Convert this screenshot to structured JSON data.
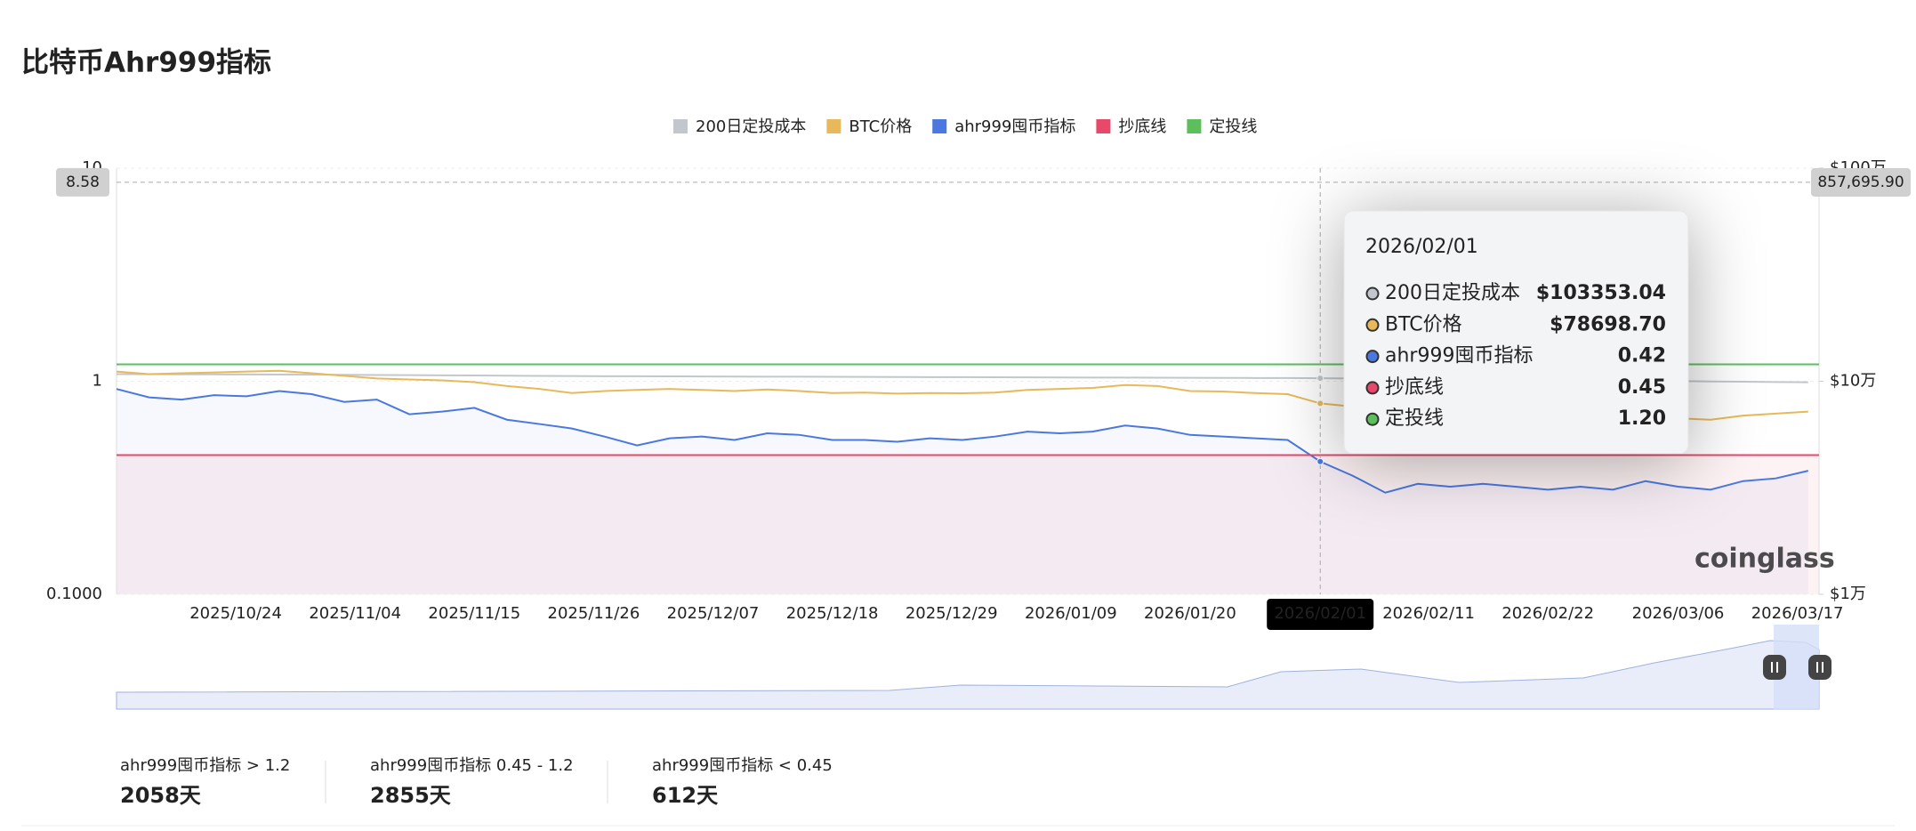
{
  "chart_data": {
    "type": "line",
    "title": "比特币Ahr999指标",
    "log_scale": true,
    "watermark": "coinglass",
    "x": [
      "2025/10/13",
      "2025/10/16",
      "2025/10/19",
      "2025/10/22",
      "2025/10/25",
      "2025/10/28",
      "2025/10/31",
      "2025/11/03",
      "2025/11/06",
      "2025/11/09",
      "2025/11/12",
      "2025/11/15",
      "2025/11/18",
      "2025/11/21",
      "2025/11/24",
      "2025/11/27",
      "2025/11/30",
      "2025/12/03",
      "2025/12/06",
      "2025/12/09",
      "2025/12/12",
      "2025/12/15",
      "2025/12/18",
      "2025/12/21",
      "2025/12/24",
      "2025/12/27",
      "2025/12/30",
      "2026/01/02",
      "2026/01/05",
      "2026/01/08",
      "2026/01/11",
      "2026/01/14",
      "2026/01/17",
      "2026/01/20",
      "2026/01/23",
      "2026/01/26",
      "2026/01/29",
      "2026/02/01",
      "2026/02/04",
      "2026/02/07",
      "2026/02/10",
      "2026/02/13",
      "2026/02/16",
      "2026/02/19",
      "2026/02/22",
      "2026/02/25",
      "2026/02/28",
      "2026/03/03",
      "2026/03/06",
      "2026/03/09",
      "2026/03/12",
      "2026/03/15",
      "2026/03/18"
    ],
    "xlim": [
      "2025/10/13",
      "2026/03/19"
    ],
    "xticks": [
      "2025/10/24",
      "2025/11/04",
      "2025/11/15",
      "2025/11/26",
      "2025/12/07",
      "2025/12/18",
      "2025/12/29",
      "2026/01/09",
      "2026/01/20",
      "2026/02/01",
      "2026/02/11",
      "2026/02/22",
      "2026/03/06",
      "2026/03/17"
    ],
    "ylim": [
      0.1,
      10
    ],
    "yticks": [
      {
        "value": 0.1,
        "label": "0.1000"
      },
      1,
      10
    ],
    "y2lim": [
      10000,
      1000000
    ],
    "y2ticks": [
      {
        "value": 10000,
        "label": "$1万"
      },
      {
        "value": 100000,
        "label": "$10万"
      },
      {
        "value": 1000000,
        "label": "$100万"
      }
    ],
    "series": [
      {
        "name": "200日定投成本",
        "color": "#c3c7cd",
        "axis": "y2",
        "values": [
          108000,
          107900,
          107800,
          107700,
          107600,
          107500,
          107400,
          107200,
          107000,
          106800,
          106600,
          106400,
          106200,
          106000,
          105800,
          105600,
          105500,
          105400,
          105300,
          105200,
          105100,
          105000,
          104900,
          104800,
          104700,
          104600,
          104500,
          104400,
          104300,
          104200,
          104100,
          104000,
          103900,
          103800,
          103700,
          103600,
          103500,
          103353.04,
          103100,
          102800,
          102500,
          102200,
          101900,
          101600,
          101300,
          101000,
          100700,
          100400,
          100100,
          99800,
          99500,
          99200,
          98900
        ]
      },
      {
        "name": "BTC价格",
        "color": "#e7b95a",
        "axis": "y2",
        "values": [
          111000,
          108000,
          109000,
          110000,
          111000,
          112000,
          109000,
          106000,
          103000,
          102000,
          101000,
          99000,
          95000,
          92000,
          88000,
          90000,
          91000,
          92000,
          91000,
          90000,
          91500,
          90000,
          88000,
          88500,
          87500,
          88000,
          87800,
          88500,
          91000,
          92000,
          93000,
          96000,
          95000,
          90000,
          89500,
          88000,
          87000,
          78698.7,
          76000,
          70000,
          70500,
          69000,
          68500,
          68000,
          67500,
          68000,
          66500,
          68000,
          67000,
          66000,
          69000,
          70500,
          72000
        ]
      },
      {
        "name": "ahr999囤币指标",
        "color": "#4a78e0",
        "values": [
          0.92,
          0.84,
          0.82,
          0.86,
          0.85,
          0.9,
          0.87,
          0.8,
          0.82,
          0.7,
          0.72,
          0.75,
          0.66,
          0.63,
          0.6,
          0.55,
          0.5,
          0.54,
          0.55,
          0.53,
          0.57,
          0.56,
          0.53,
          0.53,
          0.52,
          0.54,
          0.53,
          0.55,
          0.58,
          0.57,
          0.58,
          0.62,
          0.6,
          0.56,
          0.55,
          0.54,
          0.53,
          0.42,
          0.36,
          0.3,
          0.33,
          0.32,
          0.33,
          0.32,
          0.31,
          0.32,
          0.31,
          0.34,
          0.32,
          0.31,
          0.34,
          0.35,
          0.38
        ]
      },
      {
        "name": "抄底线",
        "color": "#e8486a",
        "value": 0.45
      },
      {
        "name": "定投线",
        "color": "#5cbf5c",
        "value": 1.2
      }
    ],
    "tooltip_index": 37,
    "tooltip_labels": [
      "$103353.04",
      "$78698.70",
      "0.42",
      "0.45",
      "1.20"
    ],
    "pointer": {
      "y": 8.58,
      "y2": 857695.9,
      "y2_label": "857,695.90"
    }
  },
  "stats": [
    {
      "label": "ahr999囤币指标 > 1.2",
      "value": "2058天"
    },
    {
      "label": "ahr999囤币指标 0.45 - 1.2",
      "value": "2855天"
    },
    {
      "label": "ahr999囤币指标 < 0.45",
      "value": "612天"
    }
  ]
}
